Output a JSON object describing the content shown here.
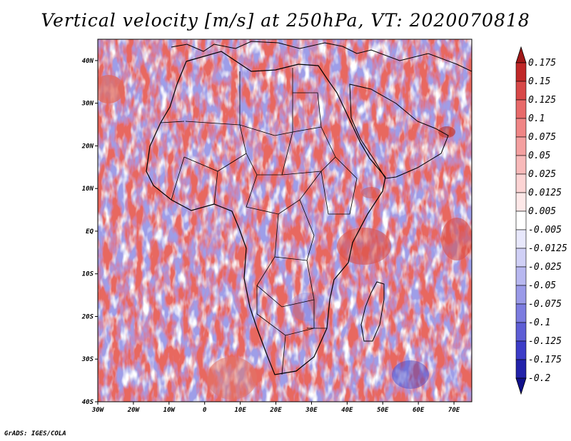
{
  "title": "Vertical velocity [m/s] at 250hPa, VT: 2020070818",
  "credit": "GrADS: IGES/COLA",
  "map": {
    "region": "Africa",
    "lon_range": [
      -30,
      75
    ],
    "lat_range": [
      -40,
      45
    ],
    "lat_ticks": [
      "40N",
      "30N",
      "20N",
      "10N",
      "EQ",
      "10S",
      "20S",
      "30S",
      "40S"
    ],
    "lon_ticks": [
      "30W",
      "20W",
      "10W",
      "0",
      "10E",
      "20E",
      "30E",
      "40E",
      "50E",
      "60E",
      "70E"
    ]
  },
  "colorbar": {
    "labels": [
      "0.175",
      "0.15",
      "0.125",
      "0.1",
      "0.075",
      "0.05",
      "0.025",
      "0.0125",
      "0.005",
      "-0.005",
      "-0.0125",
      "-0.025",
      "-0.05",
      "-0.075",
      "-0.1",
      "-0.125",
      "-0.175",
      "-0.2"
    ],
    "colors": [
      "#a01818",
      "#c02828",
      "#d84848",
      "#e86a6a",
      "#f08686",
      "#f4a0a0",
      "#f8baba",
      "#fcd4d4",
      "#fde8e8",
      "#ffffff",
      "#e8e8fc",
      "#d0d0f6",
      "#b8b8f0",
      "#9a9ae8",
      "#7c7ce0",
      "#5e5ed6",
      "#3c3cc8",
      "#2222aa",
      "#10108a"
    ]
  }
}
